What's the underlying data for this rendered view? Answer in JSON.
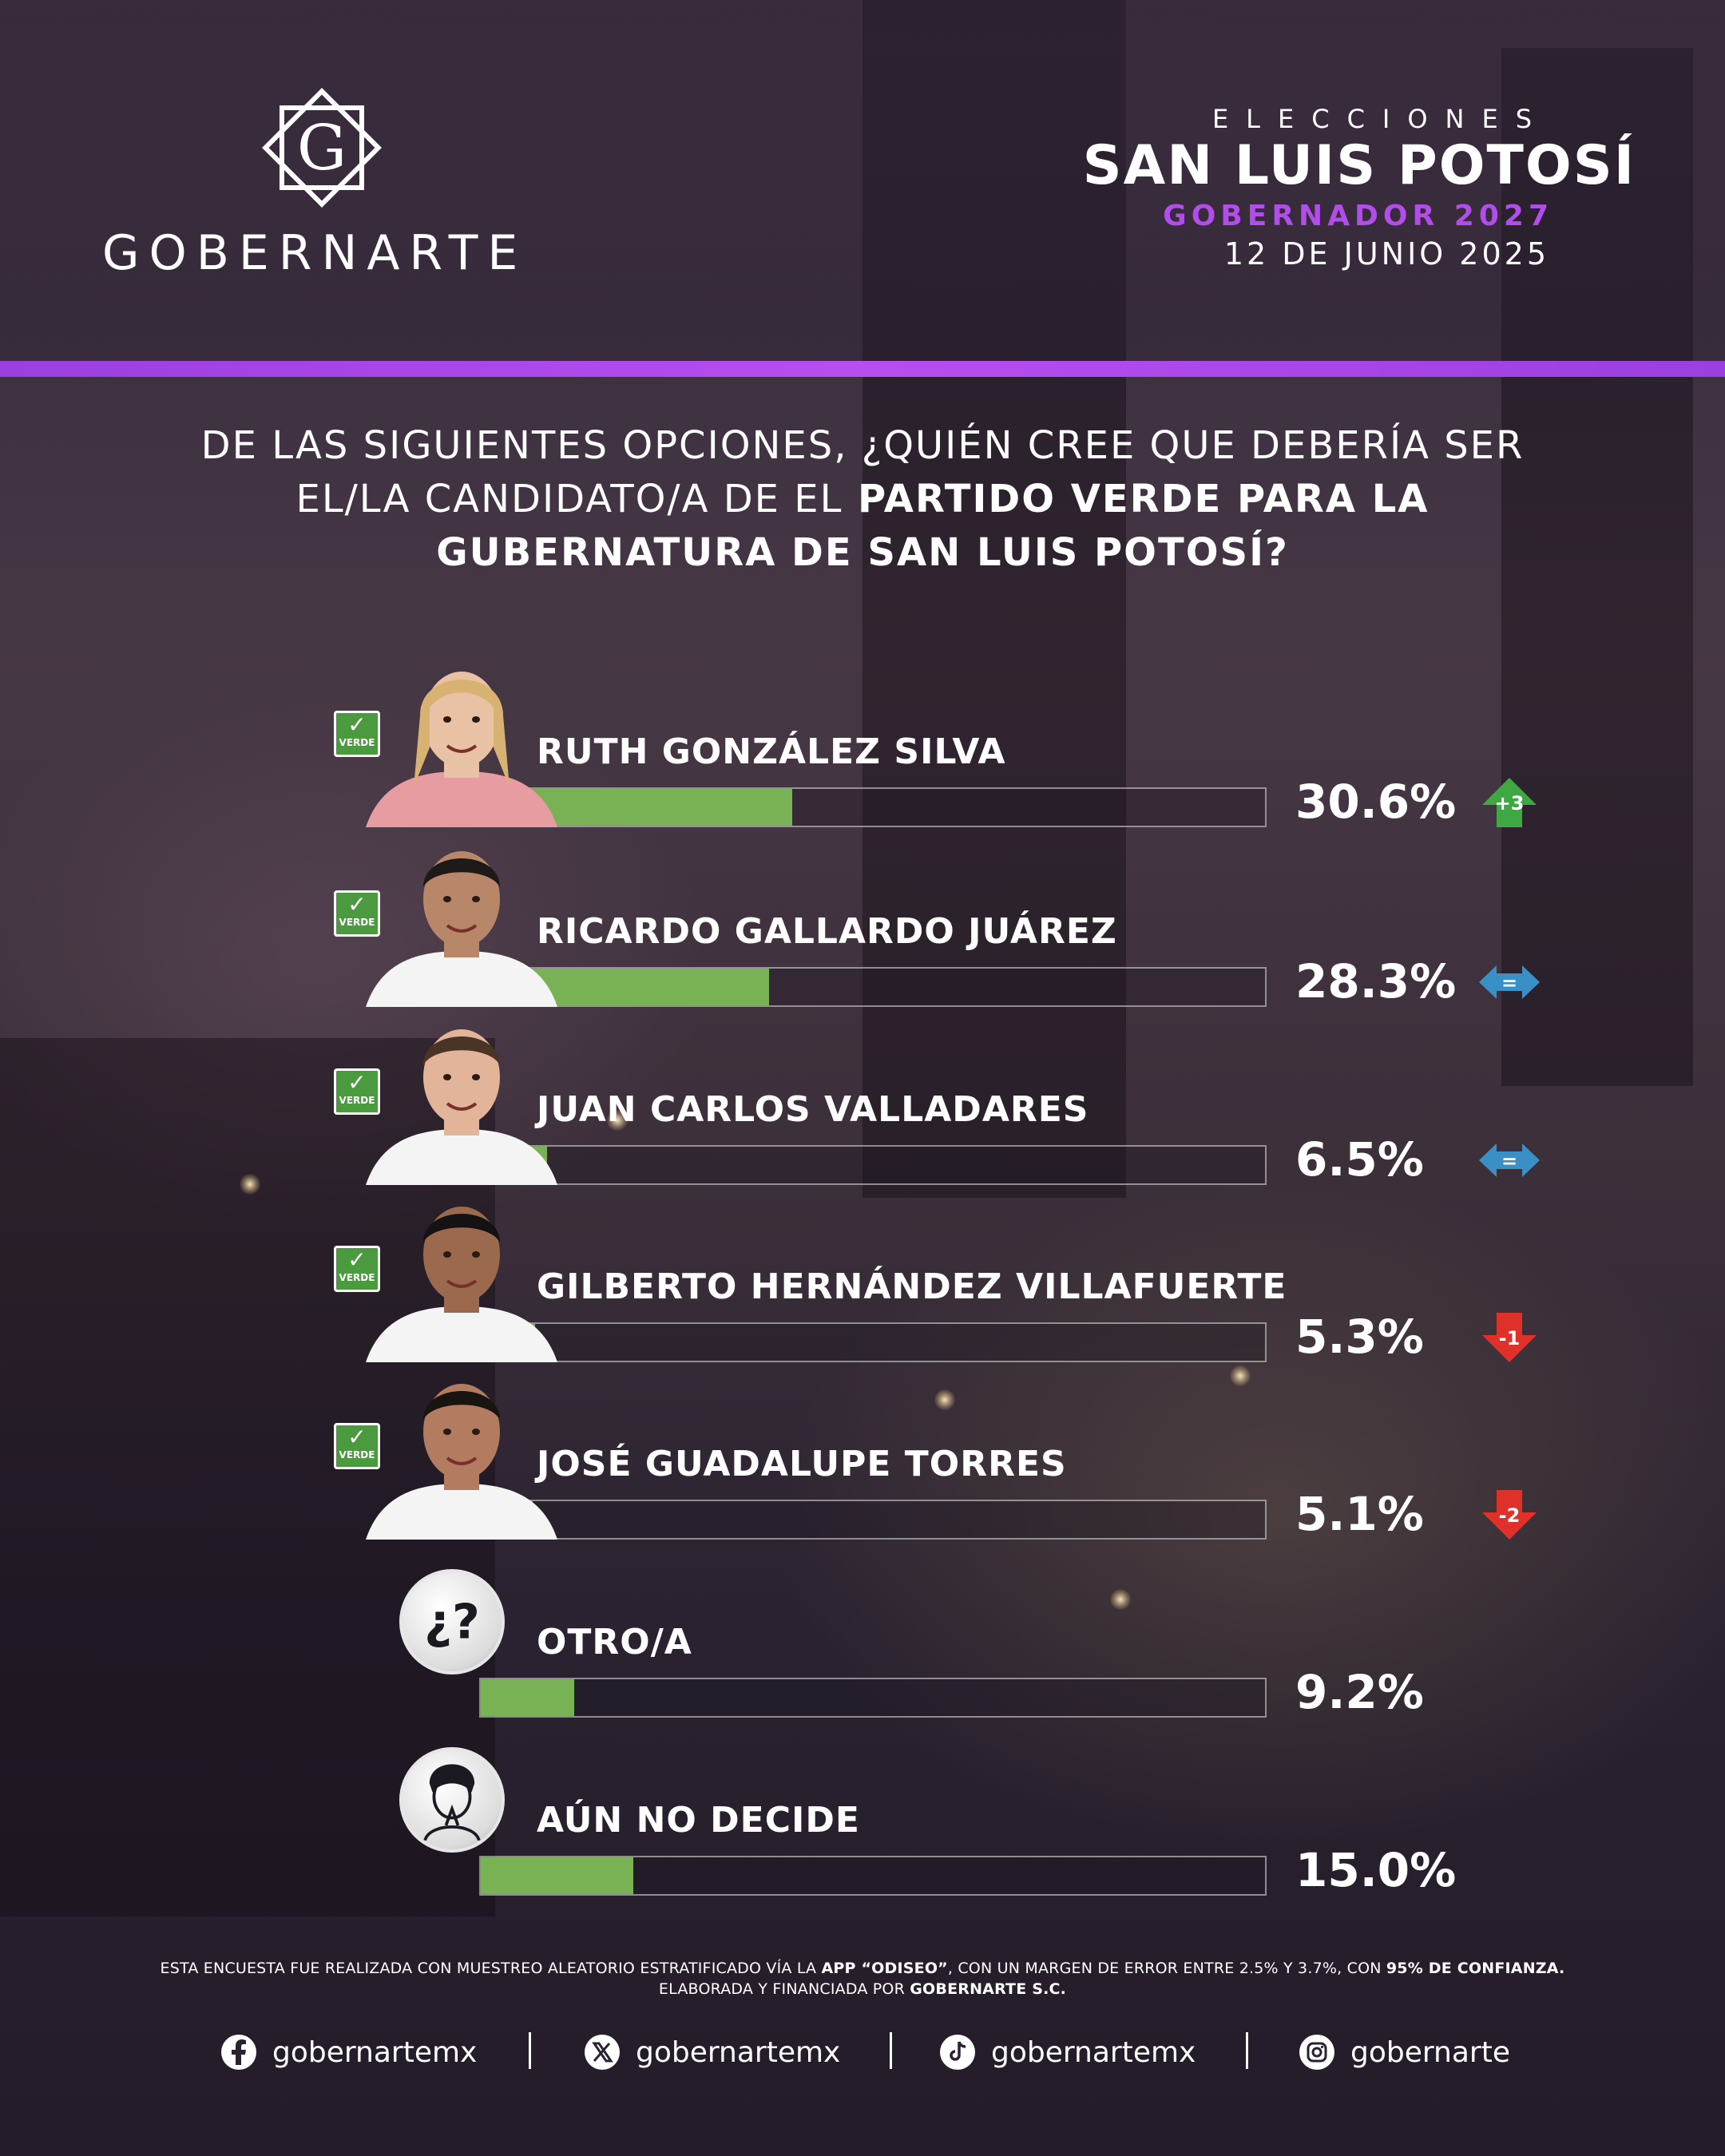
{
  "brand": {
    "logo_letter": "G",
    "name": "GOBERNARTE"
  },
  "header": {
    "kicker": "ELECCIONES",
    "state": "SAN LUIS POTOSÍ",
    "office": "GOBERNADOR 2027",
    "date": "12 DE JUNIO 2025"
  },
  "question": {
    "part1": "DE LAS SIGUIENTES OPCIONES, ¿QUIÉN CREE QUE DEBERÍA SER EL/LA CANDIDATO/A DE EL",
    "part2": "PARTIDO VERDE PARA LA GUBERNATURA DE SAN LUIS POTOSÍ?"
  },
  "party_badge": {
    "label": "VERDE",
    "color": "#4c9a3f"
  },
  "colors": {
    "accent_purple": "#b14de8",
    "bar_green": "#79b155",
    "trend_up": "#3fa845",
    "trend_equal": "#3a8fc7",
    "trend_down": "#e0302a"
  },
  "chart_data": {
    "type": "bar",
    "orientation": "horizontal",
    "categories": [
      "RUTH GONZÁLEZ SILVA",
      "RICARDO GALLARDO JUÁREZ",
      "JUAN CARLOS VALLADARES",
      "GILBERTO HERNÁNDEZ VILLAFUERTE",
      "JOSÉ GUADALUPE TORRES",
      "OTRO/A",
      "AÚN NO DECIDE"
    ],
    "values": [
      30.6,
      28.3,
      6.5,
      5.3,
      5.1,
      9.2,
      15.0
    ],
    "value_labels": [
      "30.6%",
      "28.3%",
      "6.5%",
      "5.3%",
      "5.1%",
      "9.2%",
      "15.0%"
    ],
    "trends": [
      {
        "direction": "up",
        "label": "+3"
      },
      {
        "direction": "equal",
        "label": "="
      },
      {
        "direction": "equal",
        "label": "="
      },
      {
        "direction": "down",
        "label": "-1"
      },
      {
        "direction": "down",
        "label": "-2"
      },
      null,
      null
    ],
    "has_party_badge": [
      true,
      true,
      true,
      true,
      true,
      false,
      false
    ],
    "icons": [
      "portrait",
      "portrait",
      "portrait",
      "portrait",
      "portrait",
      "question-mark-icon",
      "undecided-person-icon"
    ],
    "xlim": [
      0,
      100
    ],
    "grid": false
  },
  "footer": {
    "note_line1_a": "ESTA ENCUESTA FUE REALIZADA CON MUESTREO ALEATORIO ESTRATIFICADO VÍA LA",
    "note_line1_b": "APP “ODISEO”",
    "note_line1_c": ", CON UN MARGEN DE ERROR ENTRE 2.5% Y 3.7%, CON",
    "note_line1_d": "95% DE CONFIANZA.",
    "note_line2_a": "ELABORADA Y FINANCIADA POR",
    "note_line2_b": "GOBERNARTE S.C.",
    "socials": [
      {
        "icon": "facebook-icon",
        "handle": "gobernartemx"
      },
      {
        "icon": "x-icon",
        "handle": "gobernartemx"
      },
      {
        "icon": "tiktok-icon",
        "handle": "gobernartemx"
      },
      {
        "icon": "instagram-icon",
        "handle": "gobernarte"
      }
    ]
  }
}
